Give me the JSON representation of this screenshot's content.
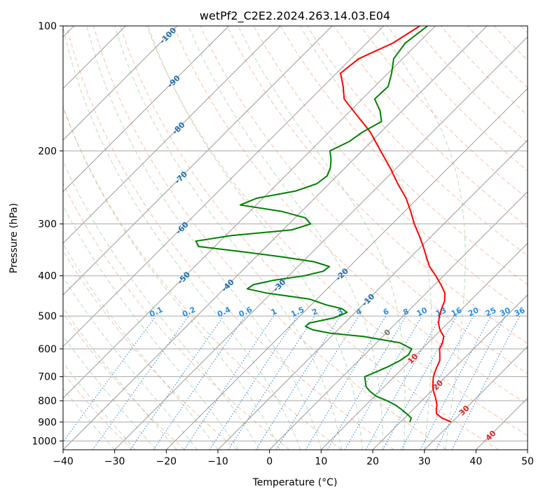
{
  "chart_data": {
    "type": "line",
    "diagram": "skew-T log-P",
    "title": "wetPf2_C2E2.2024.263.14.03.E04",
    "xlabel": "Temperature (°C)",
    "ylabel": "Pressure (hPa)",
    "xlim": [
      -40,
      50
    ],
    "ylim_hpa": [
      1050,
      100
    ],
    "log_pressure_axis": true,
    "grid": true,
    "x_ticks": [
      "−40",
      "−30",
      "−20",
      "−10",
      "0",
      "10",
      "20",
      "30",
      "40",
      "50"
    ],
    "x_tick_values": [
      -40,
      -30,
      -20,
      -10,
      0,
      10,
      20,
      30,
      40,
      50
    ],
    "y_ticks": [
      "100",
      "200",
      "300",
      "400",
      "500",
      "600",
      "700",
      "800",
      "900",
      "1000"
    ],
    "y_tick_values": [
      100,
      200,
      300,
      400,
      500,
      600,
      700,
      800,
      900,
      1000
    ],
    "series": [
      {
        "color": "#ff0000",
        "p": [
          900,
          880,
          860,
          840,
          820,
          800,
          780,
          760,
          740,
          720,
          700,
          680,
          660,
          640,
          620,
          600,
          580,
          560,
          540,
          520,
          500,
          480,
          460,
          440,
          420,
          400,
          380,
          360,
          340,
          320,
          300,
          280,
          260,
          240,
          220,
          200,
          180,
          160,
          150,
          140,
          130,
          120,
          110,
          100
        ],
        "t": [
          29.8,
          27.2,
          25.4,
          24.5,
          23.8,
          22.8,
          21.7,
          20.5,
          19.4,
          18.5,
          17.6,
          16.9,
          16.3,
          15.7,
          14.6,
          13.4,
          12.8,
          11.8,
          9.8,
          8.2,
          7.0,
          6.0,
          5.1,
          3.6,
          1.2,
          -1.5,
          -4.5,
          -7.0,
          -9.6,
          -12.5,
          -15.7,
          -18.8,
          -22.3,
          -26.7,
          -31.2,
          -36.4,
          -42.1,
          -49.5,
          -53.5,
          -56.1,
          -59.2,
          -58.5,
          -54.9,
          -53.0
        ]
      },
      {
        "color": "#008000",
        "p": [
          900,
          880,
          860,
          840,
          820,
          800,
          780,
          760,
          740,
          720,
          700,
          680,
          660,
          640,
          620,
          600,
          580,
          560,
          550,
          540,
          530,
          520,
          505,
          490,
          480,
          470,
          455,
          440,
          430,
          420,
          410,
          400,
          390,
          380,
          370,
          360,
          350,
          340,
          330,
          320,
          310,
          300,
          290,
          280,
          270,
          260,
          250,
          240,
          230,
          220,
          210,
          200,
          190,
          180,
          170,
          160,
          150,
          140,
          130,
          120,
          110,
          100
        ],
        "t": [
          21.8,
          21.3,
          19.6,
          17.8,
          15.8,
          13.3,
          10.3,
          8.2,
          6.5,
          5.4,
          4.3,
          5.7,
          7.0,
          8.0,
          8.5,
          8.0,
          4.5,
          -3.8,
          -10.8,
          -14.8,
          -16.9,
          -16.9,
          -13.0,
          -11.6,
          -13.3,
          -17.1,
          -21.5,
          -31.0,
          -35.5,
          -35.1,
          -32.0,
          -27.0,
          -24.2,
          -23.9,
          -27.8,
          -35.0,
          -43.6,
          -53.1,
          -54.7,
          -48.9,
          -38.3,
          -35.8,
          -38.0,
          -43.7,
          -53.1,
          -51.2,
          -45.1,
          -42.4,
          -41.9,
          -42.8,
          -44.3,
          -46.2,
          -44.3,
          -43.5,
          -41.9,
          -44.3,
          -47.6,
          -47.4,
          -49.3,
          -51.7,
          -52.5,
          -51.5
        ]
      }
    ],
    "isotherm_labels": [
      "-100",
      "-90",
      "-80",
      "-70",
      "-60",
      "-50",
      "-40",
      "-30",
      "-20",
      "-10",
      "0",
      "10",
      "20",
      "30",
      "40"
    ],
    "isotherm_label_values": [
      -100,
      -90,
      -80,
      -70,
      -60,
      -50,
      -40,
      -30,
      -20,
      -10,
      0,
      10,
      20,
      30,
      40
    ],
    "mixing_ratio_labels": [
      "0.1",
      "0.2",
      "0.4",
      "0.6",
      "1",
      "1.5",
      "2",
      "3",
      "4",
      "6",
      "8",
      "10",
      "13",
      "16",
      "20",
      "25",
      "30",
      "36"
    ],
    "mixing_ratio_values": [
      0.1,
      0.2,
      0.4,
      0.6,
      1,
      1.5,
      2,
      3,
      4,
      6,
      8,
      10,
      13,
      16,
      20,
      25,
      30,
      36
    ],
    "colors": {
      "temperature": "#ff0000",
      "dewpoint": "#008000",
      "isotherm_grid": "#9a9a9a",
      "isobar_grid": "#aaaaaa",
      "dry_adiabat": "#f4a582",
      "moist_adiabat": "#7fbf7f",
      "mixing_ratio": "#1f7fd8",
      "isotherm_label_cold": "#1f6fb0",
      "isotherm_label_warm": "#d62728",
      "isotherm_label_zero": "#777777",
      "mixing_ratio_label": "#2b8fe0",
      "dry_adiabat_far": "#d9b89a"
    }
  }
}
